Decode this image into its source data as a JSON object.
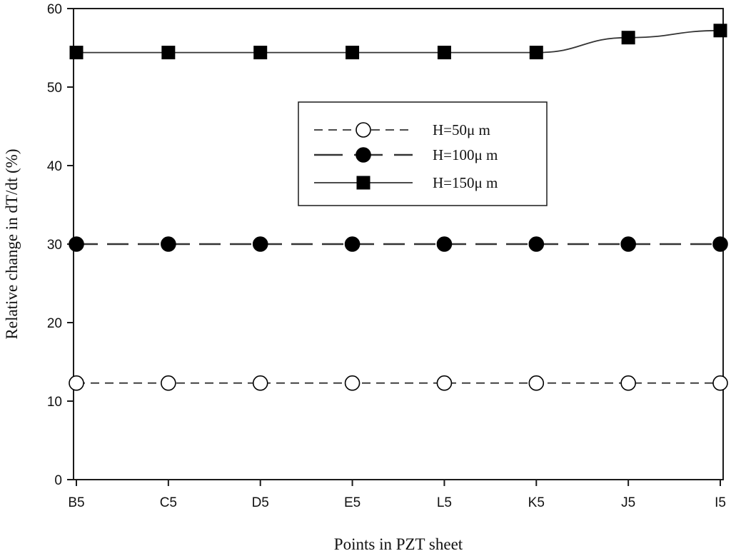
{
  "chart_data": {
    "type": "line",
    "title": "",
    "xlabel": "Points in PZT sheet",
    "ylabel": "Relative change in dT/dt (%)",
    "categories": [
      "B5",
      "C5",
      "D5",
      "E5",
      "L5",
      "K5",
      "J5",
      "I5"
    ],
    "ylim": [
      0,
      60
    ],
    "yticks": [
      0,
      10,
      20,
      30,
      40,
      50,
      60
    ],
    "grid": false,
    "legend_position": "center",
    "series": [
      {
        "name": "H=50μ m",
        "values": [
          12.3,
          12.3,
          12.3,
          12.3,
          12.3,
          12.3,
          12.3,
          12.3
        ],
        "marker": "open-circle",
        "line_style": "short-dash",
        "color": "#1a1a1a"
      },
      {
        "name": "H=100μ m",
        "values": [
          30,
          30,
          30,
          30,
          30,
          30,
          30,
          30
        ],
        "marker": "filled-circle",
        "line_style": "long-dash",
        "color": "#1a1a1a"
      },
      {
        "name": "H=150μ m",
        "values": [
          54.4,
          54.4,
          54.4,
          54.4,
          54.4,
          54.4,
          56.3,
          57.2
        ],
        "marker": "filled-square",
        "line_style": "solid",
        "color": "#1a1a1a"
      }
    ]
  }
}
